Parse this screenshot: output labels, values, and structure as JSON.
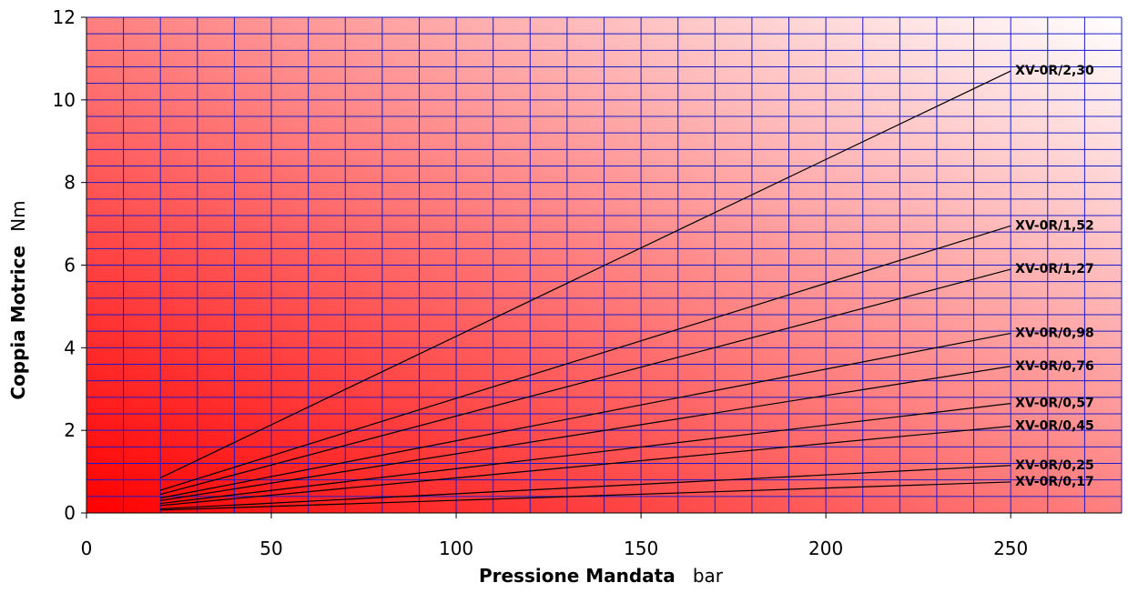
{
  "chart_data": {
    "type": "line",
    "title": "",
    "xlabel": "Pressione Mandata",
    "xunit": "bar",
    "ylabel": "Coppia Motrice",
    "yunit": "Nm",
    "xlim": [
      0,
      280
    ],
    "ylim": [
      0,
      12
    ],
    "x_ticks": [
      "0",
      "50",
      "100",
      "150",
      "200",
      "250"
    ],
    "y_ticks": [
      "0",
      "2",
      "4",
      "6",
      "8",
      "10",
      "12"
    ],
    "grid": true,
    "legend": "labels at line ends",
    "colors": {
      "background_dark": "#ff0000",
      "background_light": "#ffffff",
      "grid": "#1a1acc",
      "line": "#000000"
    },
    "series": [
      {
        "name": "XV-0R/2,30",
        "x": [
          20,
          250
        ],
        "y": [
          0.85,
          10.7
        ]
      },
      {
        "name": "XV-0R/1,52",
        "x": [
          20,
          250
        ],
        "y": [
          0.55,
          6.95
        ]
      },
      {
        "name": "XV-0R/1,27",
        "x": [
          20,
          250
        ],
        "y": [
          0.45,
          5.9
        ]
      },
      {
        "name": "XV-0R/0,98",
        "x": [
          20,
          250
        ],
        "y": [
          0.36,
          4.35
        ]
      },
      {
        "name": "XV-0R/0,76",
        "x": [
          20,
          250
        ],
        "y": [
          0.3,
          3.55
        ]
      },
      {
        "name": "XV-0R/0,57",
        "x": [
          20,
          250
        ],
        "y": [
          0.23,
          2.65
        ]
      },
      {
        "name": "XV-0R/0,45",
        "x": [
          20,
          250
        ],
        "y": [
          0.18,
          2.1
        ]
      },
      {
        "name": "XV-0R/0,25",
        "x": [
          20,
          250
        ],
        "y": [
          0.1,
          1.15
        ]
      },
      {
        "name": "XV-0R/0,17",
        "x": [
          20,
          250
        ],
        "y": [
          0.07,
          0.75
        ]
      }
    ]
  }
}
